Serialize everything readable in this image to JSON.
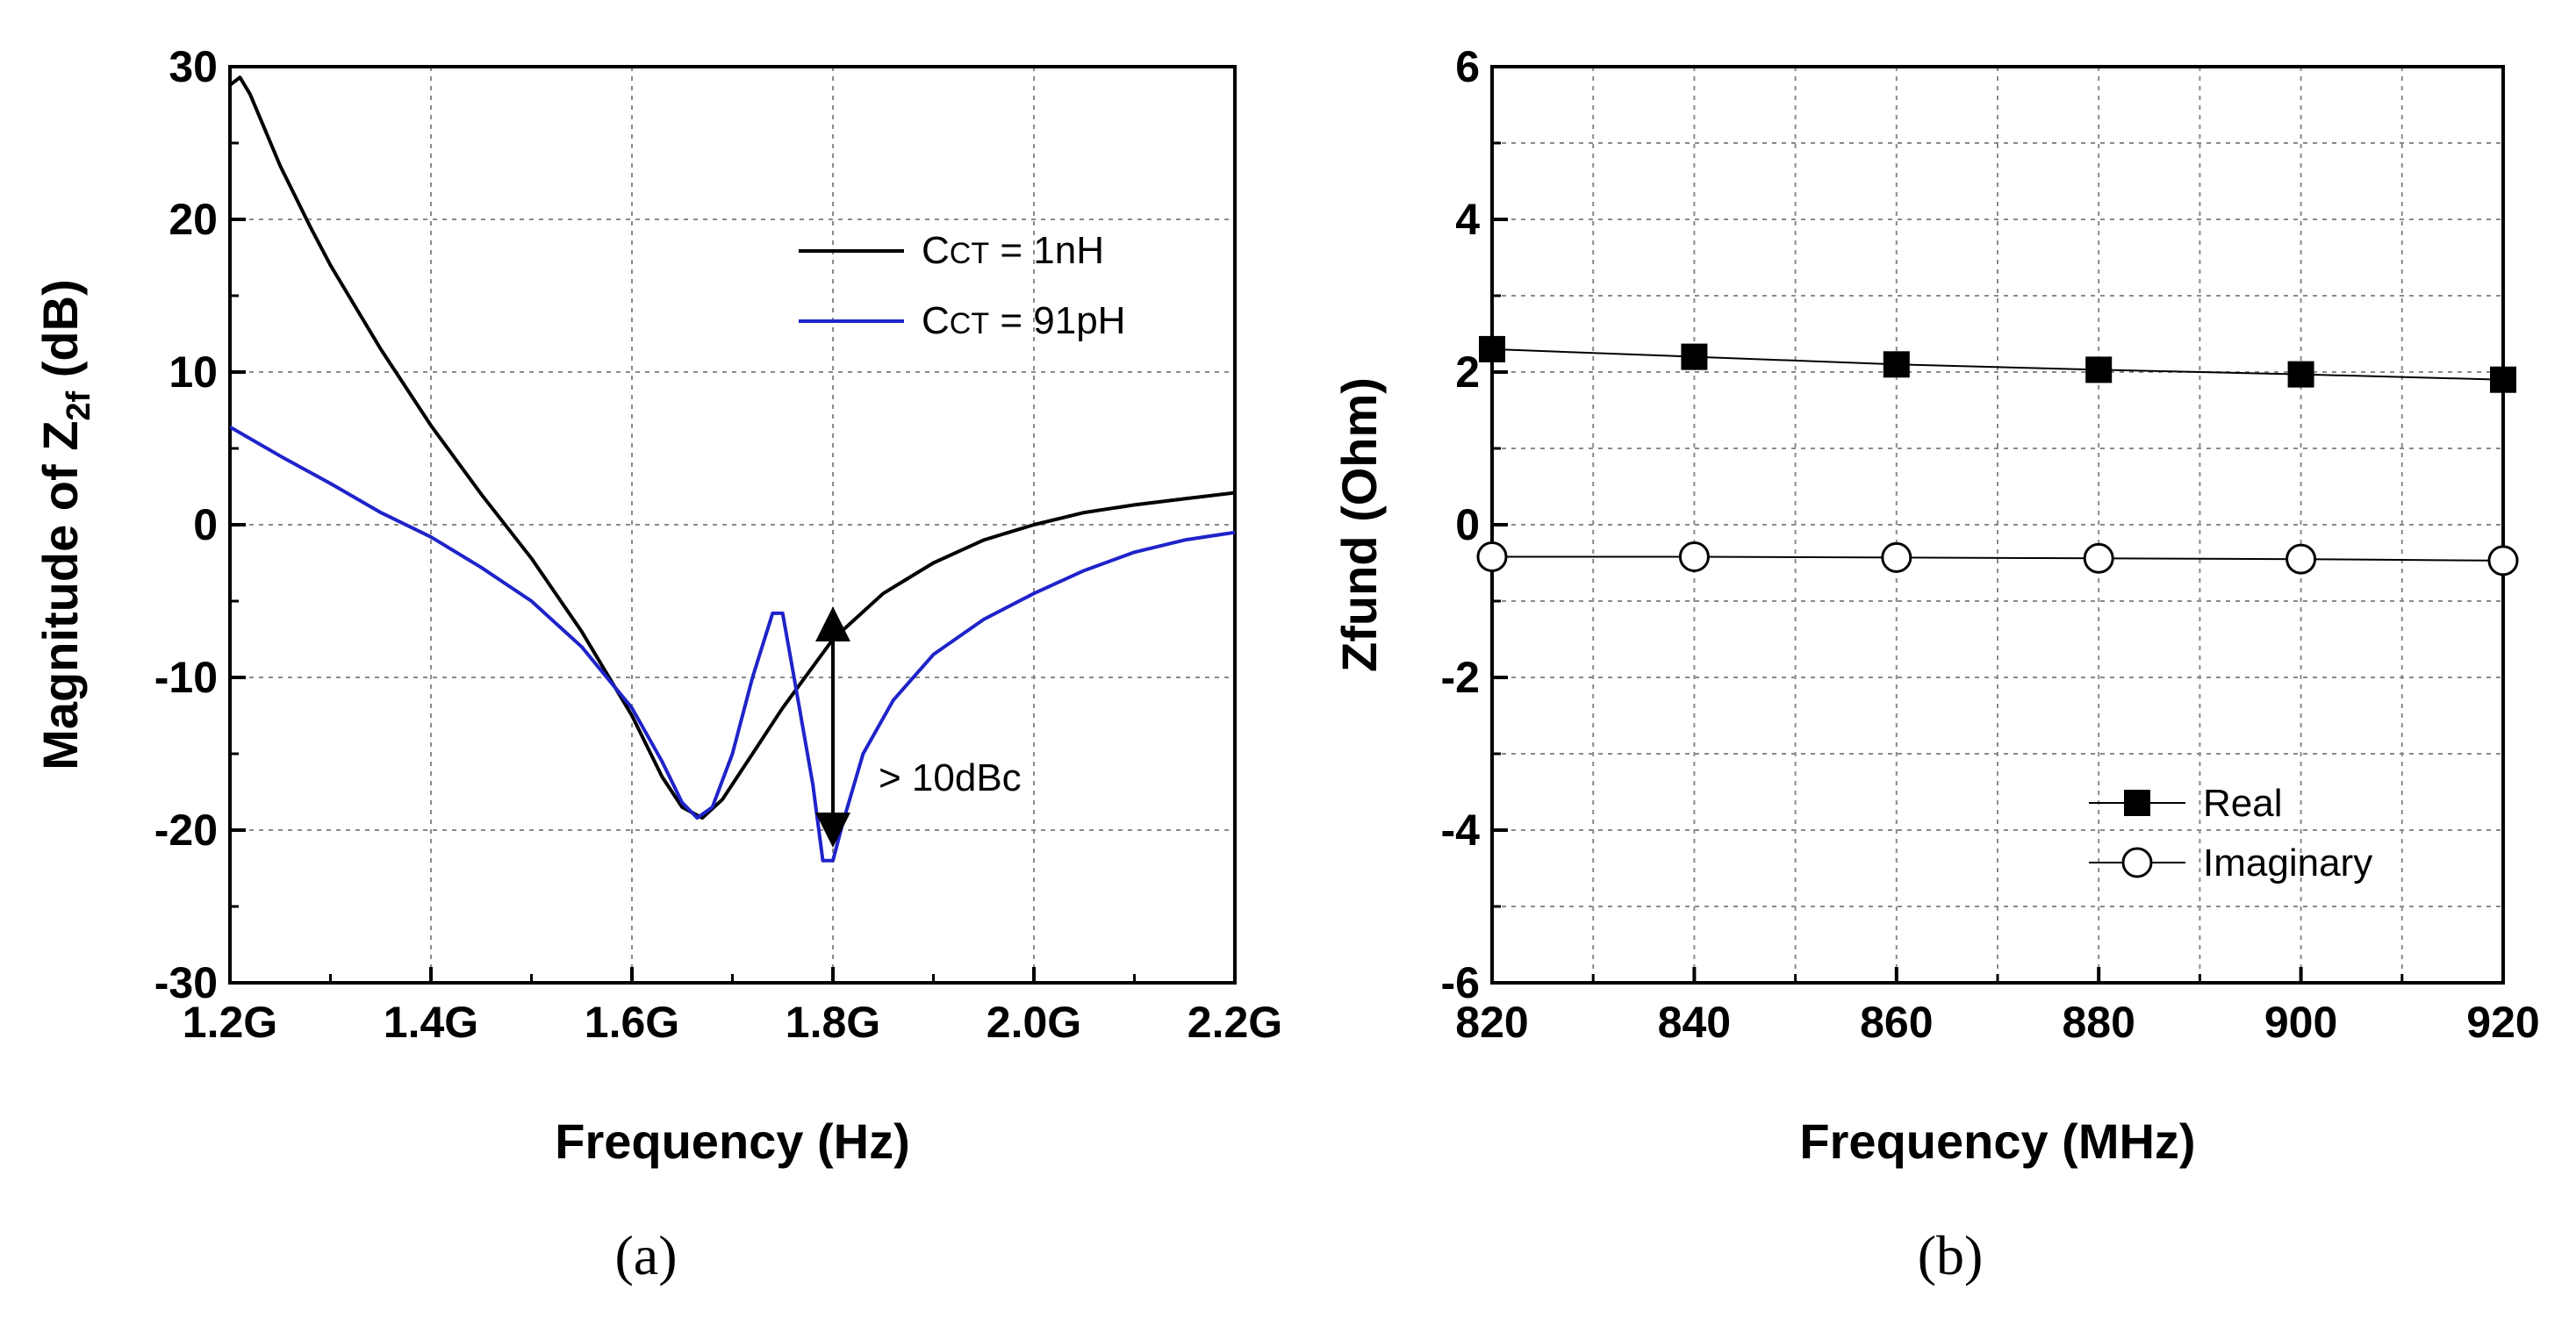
{
  "chart_data": [
    {
      "type": "line",
      "panel_label": "(a)",
      "xlabel": "Frequency (Hz)",
      "ylabel_prefix": "Magnitude of Z",
      "ylabel_sub": "2f",
      "ylabel_suffix": " (dB)",
      "xlim": [
        1.2,
        2.2
      ],
      "ylim": [
        -30,
        30
      ],
      "x_ticks": [
        1.2,
        1.4,
        1.6,
        1.8,
        2.0,
        2.2
      ],
      "x_tick_labels": [
        "1.2G",
        "1.4G",
        "1.6G",
        "1.8G",
        "2.0G",
        "2.2G"
      ],
      "y_ticks": [
        -30,
        -20,
        -10,
        0,
        10,
        20,
        30
      ],
      "y_tick_labels": [
        "-30",
        "-20",
        "-10",
        "0",
        "10",
        "20",
        "30"
      ],
      "grid": true,
      "legend_position": "top-right",
      "series": [
        {
          "name_main": "C",
          "name_sub": "CT",
          "name_rest": " = 1nH",
          "color": "#000000",
          "points": [
            [
              1.2,
              28.8
            ],
            [
              1.21,
              29.3
            ],
            [
              1.22,
              28.2
            ],
            [
              1.25,
              23.5
            ],
            [
              1.28,
              19.5
            ],
            [
              1.3,
              17.0
            ],
            [
              1.35,
              11.5
            ],
            [
              1.4,
              6.5
            ],
            [
              1.45,
              2.0
            ],
            [
              1.5,
              -2.2
            ],
            [
              1.55,
              -7.0
            ],
            [
              1.6,
              -12.5
            ],
            [
              1.63,
              -16.5
            ],
            [
              1.65,
              -18.5
            ],
            [
              1.67,
              -19.2
            ],
            [
              1.69,
              -18.0
            ],
            [
              1.72,
              -15.0
            ],
            [
              1.75,
              -12.0
            ],
            [
              1.8,
              -7.5
            ],
            [
              1.85,
              -4.5
            ],
            [
              1.9,
              -2.5
            ],
            [
              1.95,
              -1.0
            ],
            [
              2.0,
              0.0
            ],
            [
              2.05,
              0.8
            ],
            [
              2.1,
              1.3
            ],
            [
              2.15,
              1.7
            ],
            [
              2.2,
              2.1
            ]
          ]
        },
        {
          "name_main": "C",
          "name_sub": "CT",
          "name_rest": " = 91pH",
          "color": "#1f23c9",
          "points": [
            [
              1.2,
              6.4
            ],
            [
              1.25,
              4.5
            ],
            [
              1.3,
              2.7
            ],
            [
              1.35,
              0.8
            ],
            [
              1.4,
              -0.8
            ],
            [
              1.45,
              -2.8
            ],
            [
              1.5,
              -5.0
            ],
            [
              1.55,
              -8.0
            ],
            [
              1.6,
              -12.0
            ],
            [
              1.63,
              -15.5
            ],
            [
              1.65,
              -18.2
            ],
            [
              1.665,
              -19.2
            ],
            [
              1.68,
              -18.5
            ],
            [
              1.7,
              -15.0
            ],
            [
              1.72,
              -10.0
            ],
            [
              1.74,
              -5.8
            ],
            [
              1.75,
              -5.8
            ],
            [
              1.76,
              -9.5
            ],
            [
              1.78,
              -17.0
            ],
            [
              1.79,
              -22.0
            ],
            [
              1.8,
              -22.0
            ],
            [
              1.81,
              -19.5
            ],
            [
              1.83,
              -15.0
            ],
            [
              1.86,
              -11.5
            ],
            [
              1.9,
              -8.5
            ],
            [
              1.95,
              -6.2
            ],
            [
              2.0,
              -4.5
            ],
            [
              2.05,
              -3.0
            ],
            [
              2.1,
              -1.8
            ],
            [
              2.15,
              -1.0
            ],
            [
              2.2,
              -0.5
            ]
          ]
        }
      ],
      "annotation": {
        "text": "> 10dBc",
        "x": 1.8,
        "y_top": -6.5,
        "y_bottom": -20.0
      }
    },
    {
      "type": "line",
      "panel_label": "(b)",
      "xlabel": "Frequency (MHz)",
      "ylabel": "Zfund (Ohm)",
      "xlim": [
        820,
        920
      ],
      "ylim": [
        -6,
        6
      ],
      "x_ticks": [
        820,
        840,
        860,
        880,
        900,
        920
      ],
      "x_tick_labels": [
        "820",
        "840",
        "860",
        "880",
        "900",
        "920"
      ],
      "x_minor_ticks": [
        830,
        850,
        870,
        890,
        910
      ],
      "y_ticks": [
        -6,
        -4,
        -2,
        0,
        2,
        4,
        6
      ],
      "y_tick_labels": [
        "-6",
        "-4",
        "-2",
        "0",
        "2",
        "4",
        "6"
      ],
      "y_minor_ticks": [
        -5,
        -3,
        -1,
        1,
        3,
        5
      ],
      "grid": true,
      "legend_position": "bottom-right",
      "series": [
        {
          "name": "Real",
          "marker": "filled-square",
          "color": "#000000",
          "x": [
            820,
            840,
            860,
            880,
            900,
            920
          ],
          "y": [
            2.3,
            2.2,
            2.1,
            2.03,
            1.97,
            1.9
          ]
        },
        {
          "name": "Imaginary",
          "marker": "open-circle",
          "color": "#000000",
          "x": [
            820,
            840,
            860,
            880,
            900,
            920
          ],
          "y": [
            -0.42,
            -0.42,
            -0.43,
            -0.44,
            -0.45,
            -0.47
          ]
        }
      ]
    }
  ]
}
